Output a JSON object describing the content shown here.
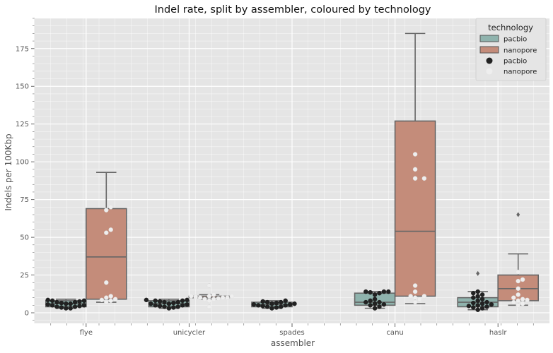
{
  "chart_data": {
    "type": "box",
    "title": "Indel rate, split by assembler, coloured by technology",
    "xlabel": "assembler",
    "ylabel": "Indels per 100Kbp",
    "categories": [
      "flye",
      "unicycler",
      "spades",
      "canu",
      "haslr"
    ],
    "ylim": [
      -7,
      195
    ],
    "yticks": [
      0,
      25,
      50,
      75,
      100,
      125,
      150,
      175
    ],
    "grid": true,
    "legend": {
      "title": "technology",
      "placement": "top-right",
      "entries": [
        {
          "label": "pacbio",
          "kind": "box"
        },
        {
          "label": "nanopore",
          "kind": "box"
        },
        {
          "label": "pacbio",
          "kind": "point"
        },
        {
          "label": "nanopore",
          "kind": "point"
        }
      ]
    },
    "series": [
      {
        "name": "pacbio",
        "box_color": "#8fb3ad",
        "point_color": "#222222",
        "boxes": [
          {
            "category": "flye",
            "whislo": 3,
            "q1": 4,
            "med": 6,
            "q3": 8,
            "whishi": 9,
            "fliers": [],
            "points": [
              3,
              3,
              3.5,
              4,
              4,
              4.5,
              5,
              5,
              5.5,
              6,
              6,
              6.5,
              7,
              7,
              7.5,
              8,
              8,
              8.5
            ]
          },
          {
            "category": "unicycler",
            "whislo": 3,
            "q1": 4,
            "med": 6,
            "q3": 8,
            "whishi": 9,
            "fliers": [],
            "points": [
              3,
              3.5,
              4,
              4,
              4.5,
              5,
              5,
              5.5,
              6,
              6,
              6.5,
              7,
              7,
              7.5,
              8,
              8,
              8.5,
              8.5
            ]
          },
          {
            "category": "spades",
            "whislo": 3,
            "q1": 4,
            "med": 5.5,
            "q3": 7,
            "whishi": 8,
            "fliers": [],
            "points": [
              3,
              3.5,
              4,
              4,
              4.5,
              5,
              5,
              5.5,
              5.5,
              6,
              6,
              6.5,
              7,
              7,
              7.5,
              8
            ]
          },
          {
            "category": "canu",
            "whislo": 3,
            "q1": 5,
            "med": 7,
            "q3": 13,
            "whishi": 14,
            "fliers": [],
            "points": [
              3,
              4,
              5,
              5.5,
              6,
              7,
              7,
              8,
              9,
              12,
              13,
              13.5,
              14,
              14,
              14
            ]
          },
          {
            "category": "haslr",
            "whislo": 2,
            "q1": 4,
            "med": 7,
            "q3": 10,
            "whishi": 14,
            "fliers": [
              26
            ],
            "points": [
              2,
              3,
              3.5,
              4,
              4.5,
              5,
              5.5,
              6,
              6.5,
              7,
              8,
              9,
              10,
              11,
              12,
              13,
              14
            ]
          }
        ]
      },
      {
        "name": "nanopore",
        "box_color": "#c48c7a",
        "point_color": "#eeeeee",
        "boxes": [
          {
            "category": "flye",
            "whislo": 7,
            "q1": 9,
            "med": 37,
            "q3": 69,
            "whishi": 93,
            "fliers": [],
            "points": [
              7,
              8,
              8.5,
              9,
              10,
              11,
              20,
              53,
              55,
              68,
              70
            ]
          },
          {
            "category": "unicycler",
            "whislo": 9,
            "q1": 10,
            "med": 10,
            "q3": 11,
            "whishi": 12,
            "fliers": [
              4,
              18
            ],
            "points": [
              4,
              8,
              9,
              9,
              9.5,
              10,
              10,
              10,
              10.5,
              11,
              11,
              11,
              12,
              18
            ]
          },
          {
            "category": "canu",
            "whislo": 6,
            "q1": 11,
            "med": 54,
            "q3": 127,
            "whishi": 185,
            "fliers": [],
            "points": [
              7,
              9,
              10,
              11,
              11,
              14,
              18,
              89,
              89,
              95,
              105
            ]
          },
          {
            "category": "haslr",
            "whislo": 5,
            "q1": 8,
            "med": 16,
            "q3": 25,
            "whishi": 39,
            "fliers": [
              65
            ],
            "points": [
              5,
              6,
              7,
              8,
              8.5,
              9,
              10,
              12,
              16,
              21,
              22,
              27
            ]
          }
        ]
      }
    ]
  }
}
